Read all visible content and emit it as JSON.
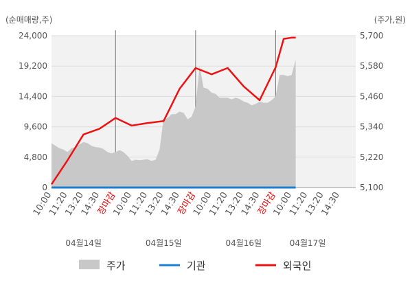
{
  "chart_data": {
    "type": "line",
    "units": {
      "left": "(순매매량,주)",
      "right": "(주가,원)"
    },
    "left_axis": {
      "ticks": [
        "0",
        "4,800",
        "9,600",
        "14,400",
        "19,200",
        "24,000"
      ],
      "ylim": [
        0,
        24000
      ]
    },
    "right_axis": {
      "ticks": [
        "5,100",
        "5,220",
        "5,340",
        "5,460",
        "5,580",
        "5,700"
      ],
      "ylim": [
        5100,
        5700
      ]
    },
    "x_ticks": [
      {
        "label": "10:00",
        "close": false
      },
      {
        "label": "11:20",
        "close": false
      },
      {
        "label": "13:20",
        "close": false
      },
      {
        "label": "14:30",
        "close": false
      },
      {
        "label": "장마감",
        "close": true
      },
      {
        "label": "10:00",
        "close": false
      },
      {
        "label": "11:20",
        "close": false
      },
      {
        "label": "13:20",
        "close": false
      },
      {
        "label": "14:30",
        "close": false
      },
      {
        "label": "장마감",
        "close": true
      },
      {
        "label": "10:00",
        "close": false
      },
      {
        "label": "11:20",
        "close": false
      },
      {
        "label": "13:20",
        "close": false
      },
      {
        "label": "14:30",
        "close": false
      },
      {
        "label": "장마감",
        "close": true
      },
      {
        "label": "10:00",
        "close": false
      },
      {
        "label": "11:20",
        "close": false
      },
      {
        "label": "13:20",
        "close": false
      },
      {
        "label": "14:30",
        "close": false
      }
    ],
    "dates": [
      {
        "label": "04월14일",
        "pos": 2
      },
      {
        "label": "04월15일",
        "pos": 7
      },
      {
        "label": "04월16일",
        "pos": 12
      },
      {
        "label": "04월17일",
        "pos": 16
      }
    ],
    "series": [
      {
        "name": "주가",
        "kind": "area",
        "axis": "right",
        "color": "#c8c8c8",
        "x": [
          0,
          0.25,
          0.5,
          0.75,
          1,
          1.25,
          1.5,
          1.75,
          2,
          2.25,
          2.5,
          2.75,
          3,
          3.25,
          3.5,
          3.75,
          4,
          4.25,
          4.5,
          4.75,
          5,
          5.25,
          5.5,
          5.75,
          6,
          6.25,
          6.5,
          6.75,
          7,
          7.25,
          7.5,
          7.75,
          8,
          8.25,
          8.5,
          8.75,
          9,
          9.25,
          9.5,
          9.75,
          10,
          10.25,
          10.5,
          10.75,
          11,
          11.25,
          11.5,
          11.75,
          12,
          12.25,
          12.5,
          12.75,
          13,
          13.25,
          13.5,
          13.75,
          14,
          14.25,
          14.5,
          14.75,
          15,
          15.25
        ],
        "values": [
          5275,
          5265,
          5255,
          5250,
          5240,
          5255,
          5260,
          5270,
          5280,
          5275,
          5265,
          5260,
          5258,
          5252,
          5240,
          5235,
          5240,
          5248,
          5240,
          5225,
          5205,
          5210,
          5208,
          5210,
          5212,
          5205,
          5210,
          5250,
          5372,
          5375,
          5390,
          5390,
          5400,
          5395,
          5370,
          5380,
          5420,
          5580,
          5495,
          5490,
          5475,
          5470,
          5455,
          5455,
          5455,
          5448,
          5455,
          5450,
          5440,
          5435,
          5425,
          5430,
          5440,
          5435,
          5435,
          5445,
          5460,
          5545,
          5545,
          5540,
          5545,
          5605
        ]
      },
      {
        "name": "기관",
        "kind": "line",
        "axis": "left",
        "color": "#1a7fd4",
        "x": [
          0,
          15.25
        ],
        "values": [
          0,
          0
        ]
      },
      {
        "name": "외국인",
        "kind": "line",
        "axis": "left",
        "color": "#ee1111",
        "x": [
          0,
          1,
          2,
          3,
          4,
          5,
          6,
          7,
          8,
          9,
          10,
          11,
          12,
          13,
          14,
          14.5,
          15,
          15.25
        ],
        "values": [
          500,
          4300,
          8400,
          9300,
          11000,
          9800,
          10200,
          10500,
          15600,
          18900,
          17900,
          18900,
          16000,
          13800,
          19000,
          23500,
          23700,
          23700
        ]
      }
    ],
    "legend": {
      "position": "bottom"
    },
    "grid": true
  }
}
